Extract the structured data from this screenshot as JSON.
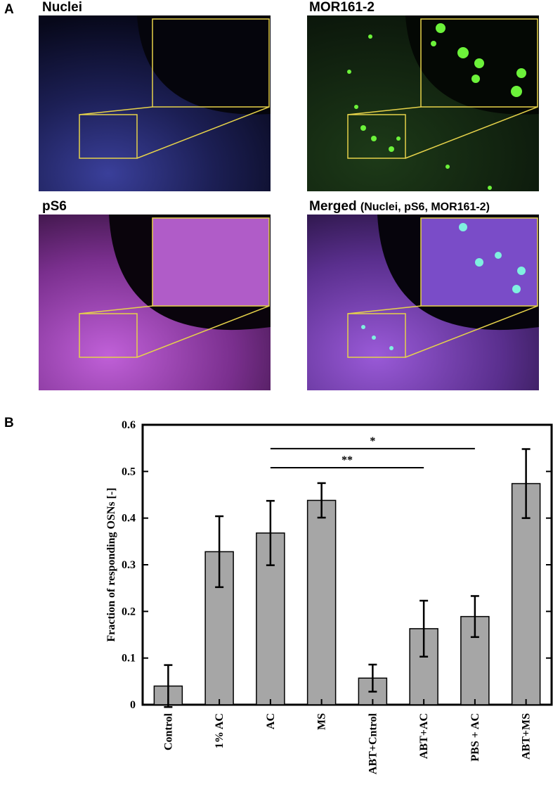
{
  "panel_letters": {
    "a": "A",
    "b": "B"
  },
  "panel_a": {
    "images": [
      {
        "label": "Nuclei"
      },
      {
        "label": "MOR161-2"
      },
      {
        "label": "pS6"
      },
      {
        "label": "Merged",
        "sublabel": "(Nuclei, pS6, MOR161-2)"
      }
    ]
  },
  "chart_data": {
    "type": "bar",
    "y_label": "Fraction of responding OSNs [-]",
    "categories": [
      "Control",
      "1% AC",
      "AC",
      "MS",
      "ABT+Cntrol",
      "ABT+AC",
      "PBS + AC",
      "ABT+MS"
    ],
    "values": [
      0.04,
      0.328,
      0.368,
      0.438,
      0.057,
      0.163,
      0.189,
      0.474
    ],
    "errors": [
      0.045,
      0.076,
      0.069,
      0.037,
      0.029,
      0.06,
      0.044,
      0.074
    ],
    "color": "#a6a6a6",
    "ylim": [
      0,
      0.6
    ],
    "yticks": [
      0,
      0.1,
      0.2,
      0.3,
      0.4,
      0.5,
      0.6
    ],
    "annotations": [
      {
        "label": "*",
        "from": "AC",
        "to": "PBS + AC",
        "y": 0.549
      },
      {
        "label": "**",
        "from": "AC",
        "to": "ABT+AC",
        "y": 0.508
      }
    ]
  }
}
